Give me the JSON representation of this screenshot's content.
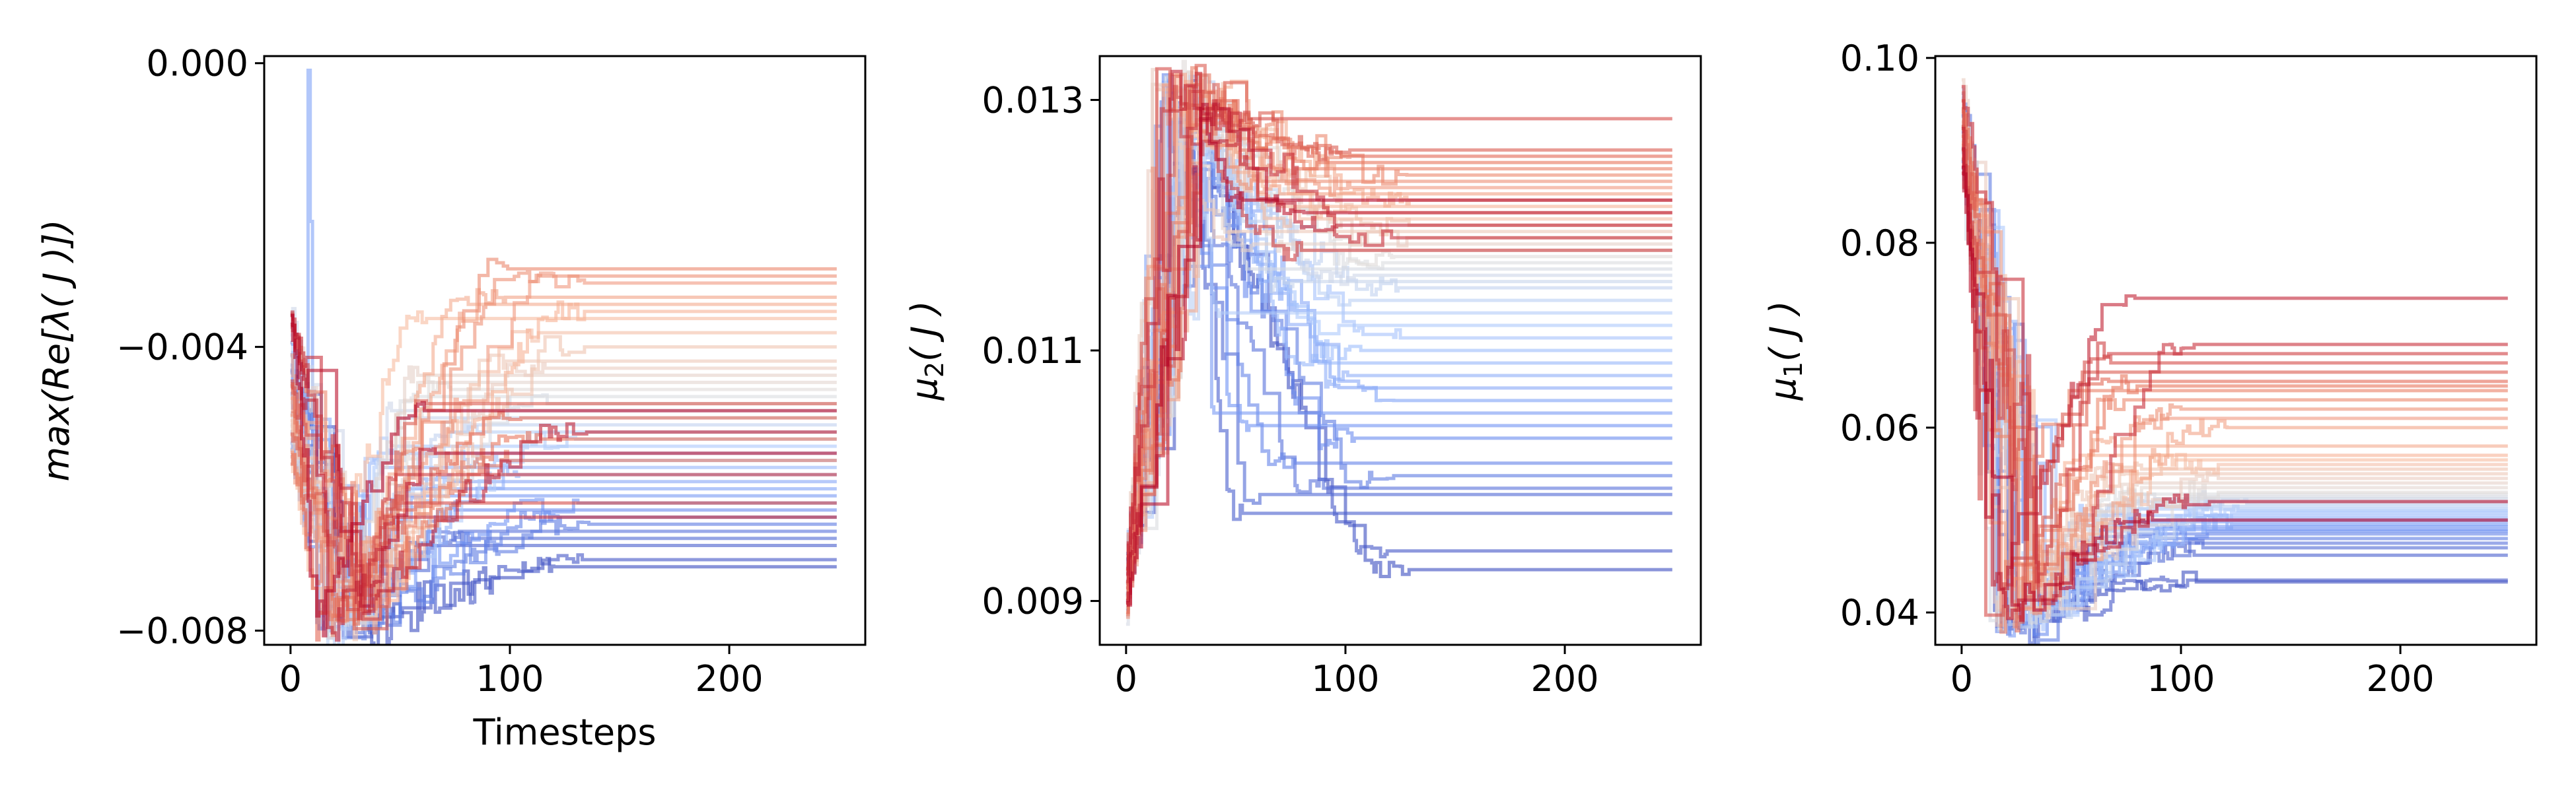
{
  "figure": {
    "background": "#ffffff",
    "palette": "coolwarm",
    "palette_stops": [
      "#3b4cc0",
      "#6f92f3",
      "#aac7fd",
      "#dddddd",
      "#f7b89c",
      "#e7745b",
      "#b40426"
    ],
    "line_alpha": 0.6
  },
  "chart_data": [
    {
      "type": "line",
      "title": "",
      "xlabel": "Timesteps",
      "ylabel_parts": [
        "max(Re[",
        "λ",
        "( ",
        "J",
        " )])"
      ],
      "xlim": [
        -12,
        262
      ],
      "ylim": [
        -0.0082,
        0.0001
      ],
      "xticks": [
        0,
        100,
        200
      ],
      "xtick_labels": [
        "0",
        "100",
        "200"
      ],
      "yticks": [
        0.0,
        -0.004,
        -0.008
      ],
      "ytick_labels": [
        "0.000",
        "−0.004",
        "−0.008"
      ],
      "grid": false,
      "legend": "none",
      "n_series": 48,
      "x_end": 249,
      "final_values": [
        -0.0071,
        -0.007,
        -0.0068,
        -0.0067,
        -0.0066,
        -0.0065,
        -0.0064,
        -0.0063,
        -0.0062,
        -0.0061,
        -0.006,
        -0.0059,
        -0.0058,
        -0.0057,
        -0.0056,
        -0.0055,
        -0.0054,
        -0.0053,
        -0.0052,
        -0.0051,
        -0.005,
        -0.0049,
        -0.0048,
        -0.0047,
        -0.0046,
        -0.0045,
        -0.0044,
        -0.0043,
        -0.0042,
        -0.004,
        -0.0038,
        -0.0036,
        -0.0035,
        -0.0034,
        -0.0033,
        -0.0031,
        -0.003,
        -0.0029,
        -0.0056,
        -0.0053,
        -0.005,
        -0.0048,
        -0.0062,
        -0.0058,
        -0.0064,
        -0.0052,
        -0.0055,
        -0.0049
      ],
      "initial_range": [
        -0.0056,
        -0.0034
      ],
      "transient_extreme": -0.008,
      "transient_peak": -0.0001,
      "settle_range": [
        40,
        140
      ]
    },
    {
      "type": "line",
      "title": "",
      "xlabel": "",
      "ylabel_parts": [
        "μ",
        "2",
        "( ",
        "J",
        " )"
      ],
      "xlim": [
        -12,
        262
      ],
      "ylim": [
        0.00865,
        0.01335
      ],
      "xticks": [
        0,
        100,
        200
      ],
      "xtick_labels": [
        "0",
        "100",
        "200"
      ],
      "yticks": [
        0.013,
        0.011,
        0.009
      ],
      "ytick_labels": [
        "0.013",
        "0.011",
        "0.009"
      ],
      "grid": false,
      "legend": "none",
      "n_series": 48,
      "x_end": 249,
      "final_values": [
        0.00925,
        0.0094,
        0.0097,
        0.00985,
        0.0099,
        0.01,
        0.0101,
        0.0103,
        0.0104,
        0.0105,
        0.0106,
        0.0107,
        0.0108,
        0.0109,
        0.011,
        0.0111,
        0.0112,
        0.0113,
        0.0114,
        0.0115,
        0.01155,
        0.0116,
        0.01165,
        0.0117,
        0.01175,
        0.0118,
        0.01185,
        0.0119,
        0.01195,
        0.012,
        0.01205,
        0.0121,
        0.01215,
        0.0122,
        0.01225,
        0.0123,
        0.01235,
        0.0124,
        0.01245,
        0.0125,
        0.01255,
        0.0126,
        0.01285,
        0.0118,
        0.0119,
        0.012,
        0.0121,
        0.0122
      ],
      "initial_range": [
        0.0089,
        0.0093
      ],
      "transient_extreme": 0.0131,
      "settle_range": [
        40,
        130
      ]
    },
    {
      "type": "line",
      "title": "",
      "xlabel": "",
      "ylabel_parts": [
        "μ",
        "1",
        "( ",
        "J",
        " )"
      ],
      "xlim": [
        -12,
        262
      ],
      "ylim": [
        0.0365,
        0.1002
      ],
      "xticks": [
        0,
        100,
        200
      ],
      "xtick_labels": [
        "0",
        "100",
        "200"
      ],
      "yticks": [
        0.1,
        0.08,
        0.06,
        0.04
      ],
      "ytick_labels": [
        "0.10",
        "0.08",
        "0.06",
        "0.04"
      ],
      "grid": false,
      "legend": "none",
      "n_series": 48,
      "x_end": 249,
      "final_values": [
        0.0433,
        0.0435,
        0.0462,
        0.047,
        0.0475,
        0.048,
        0.0485,
        0.0488,
        0.049,
        0.0493,
        0.0495,
        0.0498,
        0.05,
        0.0502,
        0.0505,
        0.0508,
        0.051,
        0.0512,
        0.0515,
        0.0518,
        0.052,
        0.0523,
        0.0525,
        0.0528,
        0.053,
        0.0535,
        0.054,
        0.0545,
        0.055,
        0.0555,
        0.056,
        0.0565,
        0.057,
        0.058,
        0.06,
        0.061,
        0.062,
        0.063,
        0.064,
        0.0645,
        0.065,
        0.066,
        0.067,
        0.068,
        0.069,
        0.074,
        0.052,
        0.05
      ],
      "initial_range": [
        0.088,
        0.097
      ],
      "transient_extreme": 0.039,
      "settle_range": [
        40,
        130
      ]
    }
  ]
}
